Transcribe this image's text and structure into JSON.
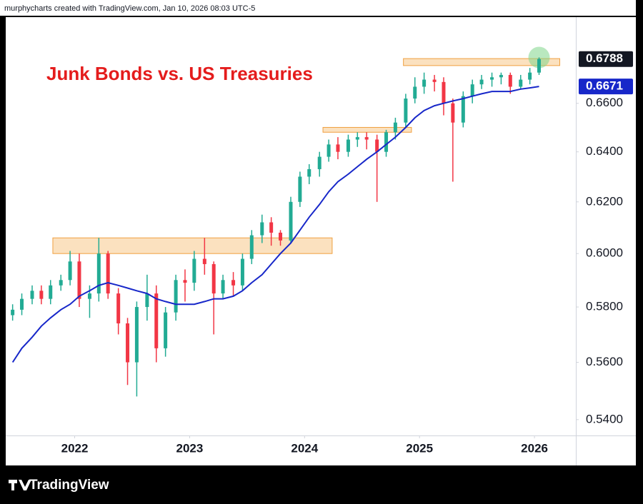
{
  "source": "murphycharts created with TradingView.com, Jan 10, 2026 08:03 UTC-5",
  "brand": "TradingView",
  "chart_data": {
    "type": "candlestick",
    "title": "Junk Bonds vs. US Treasuries",
    "log_scale": true,
    "grid": false,
    "up_color": "#22ab94",
    "down_color": "#f23645",
    "x": [
      2021.46,
      2021.54,
      2021.63,
      2021.71,
      2021.79,
      2021.88,
      2021.96,
      2022.04,
      2022.13,
      2022.21,
      2022.29,
      2022.38,
      2022.46,
      2022.54,
      2022.63,
      2022.71,
      2022.79,
      2022.88,
      2022.96,
      2023.04,
      2023.13,
      2023.21,
      2023.29,
      2023.38,
      2023.46,
      2023.54,
      2023.63,
      2023.71,
      2023.79,
      2023.88,
      2023.96,
      2024.04,
      2024.13,
      2024.21,
      2024.29,
      2024.38,
      2024.46,
      2024.54,
      2024.63,
      2024.71,
      2024.79,
      2024.88,
      2024.96,
      2025.04,
      2025.13,
      2025.21,
      2025.29,
      2025.38,
      2025.46,
      2025.54,
      2025.63,
      2025.71,
      2025.79,
      2025.88,
      2025.96,
      2026.04
    ],
    "open": [
      0.577,
      0.579,
      0.583,
      0.586,
      0.583,
      0.588,
      0.59,
      0.597,
      0.583,
      0.585,
      0.6,
      0.585,
      0.574,
      0.56,
      0.58,
      0.585,
      0.565,
      0.578,
      0.59,
      0.589,
      0.598,
      0.596,
      0.585,
      0.59,
      0.588,
      0.598,
      0.607,
      0.612,
      0.608,
      0.605,
      0.62,
      0.63,
      0.633,
      0.638,
      0.643,
      0.64,
      0.645,
      0.646,
      0.645,
      0.64,
      0.648,
      0.652,
      0.662,
      0.667,
      0.67,
      0.669,
      0.66,
      0.652,
      0.663,
      0.668,
      0.67,
      0.671,
      0.672,
      0.667,
      0.67,
      0.673
    ],
    "high": [
      0.581,
      0.585,
      0.588,
      0.588,
      0.59,
      0.592,
      0.601,
      0.6,
      0.588,
      0.606,
      0.601,
      0.587,
      0.576,
      0.582,
      0.592,
      0.588,
      0.58,
      0.592,
      0.594,
      0.601,
      0.606,
      0.597,
      0.592,
      0.593,
      0.6,
      0.609,
      0.615,
      0.614,
      0.609,
      0.622,
      0.632,
      0.635,
      0.64,
      0.645,
      0.646,
      0.647,
      0.648,
      0.648,
      0.647,
      0.649,
      0.654,
      0.664,
      0.671,
      0.673,
      0.672,
      0.671,
      0.662,
      0.665,
      0.67,
      0.672,
      0.673,
      0.673,
      0.673,
      0.672,
      0.675,
      0.6795
    ],
    "low": [
      0.575,
      0.577,
      0.581,
      0.581,
      0.581,
      0.586,
      0.588,
      0.58,
      0.576,
      0.582,
      0.583,
      0.57,
      0.552,
      0.548,
      0.575,
      0.56,
      0.562,
      0.575,
      0.582,
      0.586,
      0.592,
      0.57,
      0.583,
      0.584,
      0.586,
      0.596,
      0.604,
      0.603,
      0.603,
      0.604,
      0.618,
      0.627,
      0.63,
      0.636,
      0.637,
      0.638,
      0.642,
      0.641,
      0.62,
      0.638,
      0.645,
      0.65,
      0.66,
      0.664,
      0.665,
      0.655,
      0.628,
      0.65,
      0.66,
      0.666,
      0.667,
      0.668,
      0.664,
      0.666,
      0.668,
      0.672
    ],
    "close": [
      0.579,
      0.583,
      0.586,
      0.583,
      0.588,
      0.59,
      0.597,
      0.583,
      0.585,
      0.6,
      0.585,
      0.574,
      0.56,
      0.58,
      0.585,
      0.565,
      0.578,
      0.59,
      0.589,
      0.598,
      0.596,
      0.585,
      0.59,
      0.588,
      0.598,
      0.607,
      0.612,
      0.608,
      0.605,
      0.62,
      0.63,
      0.633,
      0.638,
      0.643,
      0.64,
      0.645,
      0.646,
      0.645,
      0.64,
      0.648,
      0.652,
      0.662,
      0.667,
      0.67,
      0.669,
      0.66,
      0.652,
      0.663,
      0.668,
      0.67,
      0.671,
      0.672,
      0.667,
      0.67,
      0.673,
      0.6788
    ],
    "ma": {
      "color": "#1727c9",
      "values": [
        0.56,
        0.565,
        0.569,
        0.573,
        0.576,
        0.579,
        0.581,
        0.584,
        0.586,
        0.588,
        0.589,
        0.588,
        0.587,
        0.586,
        0.585,
        0.583,
        0.582,
        0.581,
        0.581,
        0.581,
        0.582,
        0.583,
        0.583,
        0.584,
        0.586,
        0.589,
        0.592,
        0.596,
        0.6,
        0.604,
        0.609,
        0.614,
        0.619,
        0.624,
        0.628,
        0.631,
        0.634,
        0.637,
        0.64,
        0.643,
        0.646,
        0.65,
        0.654,
        0.657,
        0.659,
        0.66,
        0.661,
        0.662,
        0.663,
        0.664,
        0.665,
        0.665,
        0.665,
        0.666,
        0.6665,
        0.6671
      ]
    },
    "zones": {
      "color": "#f8c98a",
      "items": [
        {
          "x": [
            2021.81,
            2024.24
          ],
          "y": [
            0.6,
            0.606
          ]
        },
        {
          "x": [
            2024.16,
            2024.93
          ],
          "y": [
            0.648,
            0.65
          ]
        },
        {
          "x": [
            2024.86,
            2026.22
          ],
          "y": [
            0.676,
            0.679
          ]
        }
      ]
    },
    "xlim": [
      2021.4,
      2026.36
    ],
    "xticks": [
      2022,
      2023,
      2024,
      2025,
      2026
    ],
    "ylim": [
      0.5346,
      0.6971
    ],
    "yticks": [
      {
        "value": 0.54,
        "label": "0.5400"
      },
      {
        "value": 0.56,
        "label": "0.5600"
      },
      {
        "value": 0.58,
        "label": "0.5800"
      },
      {
        "value": 0.6,
        "label": "0.6000"
      },
      {
        "value": 0.62,
        "label": "0.6200"
      },
      {
        "value": 0.64,
        "label": "0.6400"
      },
      {
        "value": 0.66,
        "label": "0.6600"
      }
    ]
  }
}
